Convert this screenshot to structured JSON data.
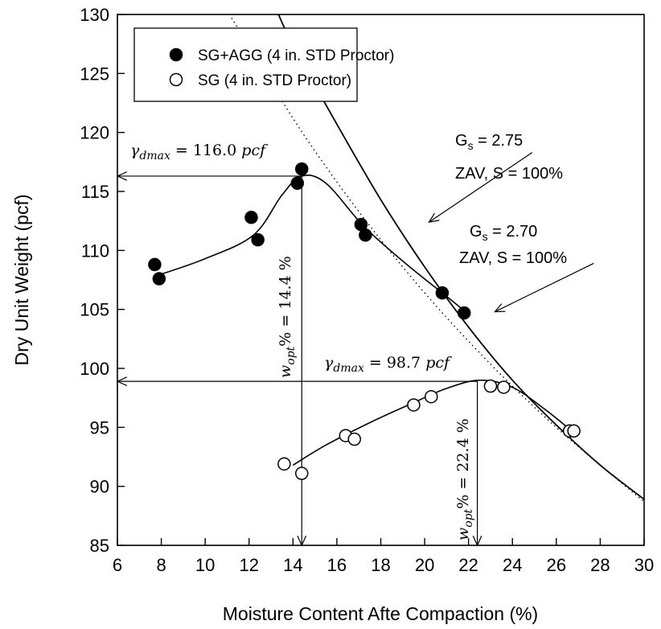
{
  "chart_data": {
    "type": "scatter",
    "title": "",
    "xlabel": "Moisture Content Afte Compaction (%)",
    "ylabel": "Dry Unit Weight (pcf)",
    "xlim": [
      6,
      30
    ],
    "ylim": [
      85,
      130
    ],
    "x_ticks": [
      6,
      8,
      10,
      12,
      14,
      16,
      18,
      20,
      22,
      24,
      26,
      28,
      30
    ],
    "y_ticks": [
      85,
      90,
      95,
      100,
      105,
      110,
      115,
      120,
      125,
      130
    ],
    "grid": false,
    "legend_position": "top-left",
    "series": [
      {
        "name": "SG+AGG (4 in. STD Proctor)",
        "marker": "filled-circle",
        "x": [
          7.7,
          7.9,
          12.1,
          12.4,
          14.2,
          14.4,
          17.1,
          17.3,
          20.8,
          21.8
        ],
        "y": [
          108.8,
          107.6,
          112.8,
          110.9,
          115.7,
          116.9,
          112.2,
          111.3,
          106.4,
          104.7
        ],
        "fit_x": [
          7.7,
          10.0,
          12.2,
          13.5,
          14.4,
          15.5,
          17.2,
          19.0,
          21.0,
          21.8
        ],
        "fit_y": [
          107.8,
          109.3,
          111.3,
          114.7,
          116.3,
          115.7,
          112.1,
          109.1,
          106.1,
          104.9
        ]
      },
      {
        "name": "SG (4 in. STD Proctor)",
        "marker": "open-circle",
        "x": [
          13.6,
          14.4,
          16.4,
          16.8,
          19.5,
          20.3,
          23.0,
          23.6,
          26.6,
          26.8
        ],
        "y": [
          91.9,
          91.1,
          94.3,
          94.0,
          96.9,
          97.6,
          98.5,
          98.4,
          94.7,
          94.7
        ],
        "fit_x": [
          14.0,
          15.5,
          17.5,
          19.5,
          21.0,
          22.5,
          24.0,
          25.5,
          26.7
        ],
        "fit_y": [
          91.8,
          93.5,
          95.4,
          97.1,
          98.3,
          99.0,
          98.4,
          96.5,
          94.7
        ]
      },
      {
        "name": "ZAV Gs = 2.75",
        "marker": "none",
        "line": "solid",
        "x": [
          13.2,
          14,
          16,
          18,
          20,
          22,
          24,
          26,
          28,
          30
        ],
        "y": [
          130.6,
          127.4,
          120.7,
          114.3,
          108.6,
          103.5,
          99.0,
          95.2,
          91.8,
          88.9
        ]
      },
      {
        "name": "ZAV Gs = 2.70",
        "marker": "none",
        "line": "dotted",
        "x": [
          11.2,
          12,
          14,
          16,
          18,
          20,
          22,
          24,
          26,
          28,
          30
        ],
        "y": [
          129.7,
          127.3,
          121.2,
          115.8,
          110.9,
          106.4,
          102.3,
          98.5,
          95.0,
          91.8,
          88.7
        ]
      }
    ],
    "arrows": [
      {
        "from": [
          14.4,
          116.3
        ],
        "to": [
          6.0,
          116.3
        ]
      },
      {
        "from": [
          14.4,
          116.3
        ],
        "to": [
          14.4,
          85.0
        ]
      },
      {
        "from": [
          22.4,
          98.9
        ],
        "to": [
          6.0,
          98.9
        ]
      },
      {
        "from": [
          22.4,
          98.9
        ],
        "to": [
          22.4,
          85.0
        ]
      },
      {
        "from": [
          24.9,
          118.3
        ],
        "to": [
          20.2,
          112.4
        ]
      },
      {
        "from": [
          27.7,
          108.9
        ],
        "to": [
          23.2,
          104.8
        ]
      }
    ],
    "annotations": {
      "gdmax_1": {
        "sym": "γ",
        "sub": "dmax",
        "rest": " = 116.0 ",
        "unit": "pcf"
      },
      "gdmax_2": {
        "sym": "γ",
        "sub": "dmax",
        "rest": " = 98.7 ",
        "unit": "pcf"
      },
      "wopt_1": {
        "sym": "w",
        "sub": "opt",
        "rest": "% = 14.4 %"
      },
      "wopt_2": {
        "sym": "w",
        "sub": "opt",
        "rest": "% = 22.4 %"
      },
      "zav_275": {
        "g": "G",
        "s": "s",
        "val": " = 2.75",
        "line2": "ZAV, S = 100%"
      },
      "zav_270": {
        "g": "G",
        "s": "s",
        "val": " = 2.70",
        "line2": "ZAV, S = 100%"
      }
    }
  }
}
